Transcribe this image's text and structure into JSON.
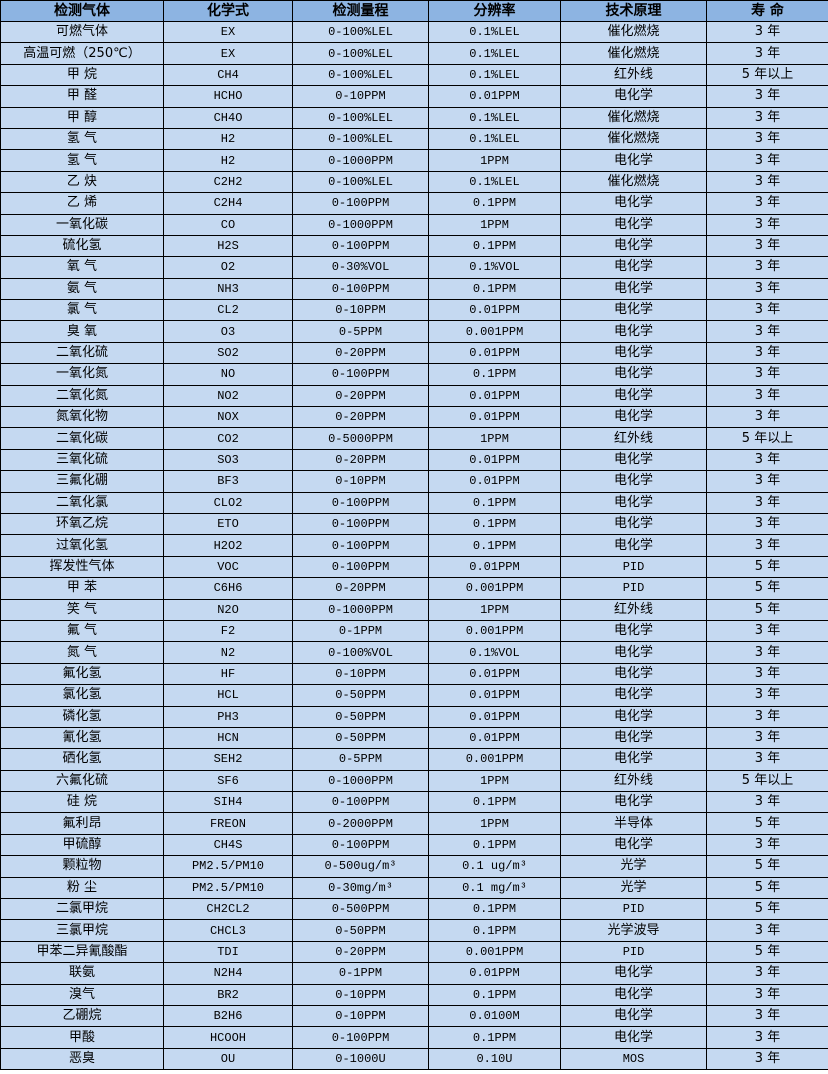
{
  "colors": {
    "header_bg": "#8db4e2",
    "row_bg": "#c5d9f1",
    "border": "#000000"
  },
  "headers": [
    "检测气体",
    "化学式",
    "检测量程",
    "分辨率",
    "技术原理",
    "寿 命"
  ],
  "rows": [
    [
      "可燃气体",
      "EX",
      "0-100%LEL",
      "0.1%LEL",
      "催化燃烧",
      "3 年"
    ],
    [
      "高温可燃（250℃）",
      "EX",
      "0-100%LEL",
      "0.1%LEL",
      "催化燃烧",
      "3 年"
    ],
    [
      "甲 烷",
      "CH4",
      "0-100%LEL",
      "0.1%LEL",
      "红外线",
      "5 年以上"
    ],
    [
      "甲 醛",
      "HCHO",
      "0-10PPM",
      "0.01PPM",
      "电化学",
      "3 年"
    ],
    [
      "甲 醇",
      "CH4O",
      "0-100%LEL",
      "0.1%LEL",
      "催化燃烧",
      "3 年"
    ],
    [
      "氢 气",
      "H2",
      "0-100%LEL",
      "0.1%LEL",
      "催化燃烧",
      "3 年"
    ],
    [
      "氢 气",
      "H2",
      "0-1000PPM",
      "1PPM",
      "电化学",
      "3 年"
    ],
    [
      "乙 炔",
      "C2H2",
      "0-100%LEL",
      "0.1%LEL",
      "催化燃烧",
      "3 年"
    ],
    [
      "乙 烯",
      "C2H4",
      "0-100PPM",
      "0.1PPM",
      "电化学",
      "3 年"
    ],
    [
      "一氧化碳",
      "CO",
      "0-1000PPM",
      "1PPM",
      "电化学",
      "3 年"
    ],
    [
      "硫化氢",
      "H2S",
      "0-100PPM",
      "0.1PPM",
      "电化学",
      "3 年"
    ],
    [
      "氧 气",
      "O2",
      "0-30%VOL",
      "0.1%VOL",
      "电化学",
      "3 年"
    ],
    [
      "氨 气",
      "NH3",
      "0-100PPM",
      "0.1PPM",
      "电化学",
      "3 年"
    ],
    [
      "氯 气",
      "CL2",
      "0-10PPM",
      "0.01PPM",
      "电化学",
      "3 年"
    ],
    [
      "臭 氧",
      "O3",
      "0-5PPM",
      "0.001PPM",
      "电化学",
      "3 年"
    ],
    [
      "二氧化硫",
      "SO2",
      "0-20PPM",
      "0.01PPM",
      "电化学",
      "3 年"
    ],
    [
      "一氧化氮",
      "NO",
      "0-100PPM",
      "0.1PPM",
      "电化学",
      "3 年"
    ],
    [
      "二氧化氮",
      "NO2",
      "0-20PPM",
      "0.01PPM",
      "电化学",
      "3 年"
    ],
    [
      "氮氧化物",
      "NOX",
      "0-20PPM",
      "0.01PPM",
      "电化学",
      "3 年"
    ],
    [
      "二氧化碳",
      "CO2",
      "0-5000PPM",
      "1PPM",
      "红外线",
      "5 年以上"
    ],
    [
      "三氧化硫",
      "SO3",
      "0-20PPM",
      "0.01PPM",
      "电化学",
      "3 年"
    ],
    [
      "三氟化硼",
      "BF3",
      "0-10PPM",
      "0.01PPM",
      "电化学",
      "3 年"
    ],
    [
      "二氧化氯",
      "CLO2",
      "0-100PPM",
      "0.1PPM",
      "电化学",
      "3 年"
    ],
    [
      "环氧乙烷",
      "ETO",
      "0-100PPM",
      "0.1PPM",
      "电化学",
      "3 年"
    ],
    [
      "过氧化氢",
      "H2O2",
      "0-100PPM",
      "0.1PPM",
      "电化学",
      "3 年"
    ],
    [
      "挥发性气体",
      "VOC",
      "0-100PPM",
      "0.01PPM",
      "PID",
      "5 年"
    ],
    [
      "甲 苯",
      "C6H6",
      "0-20PPM",
      "0.001PPM",
      "PID",
      "5 年"
    ],
    [
      "笑 气",
      "N2O",
      "0-1000PPM",
      "1PPM",
      "红外线",
      "5 年"
    ],
    [
      "氟 气",
      "F2",
      "0-1PPM",
      "0.001PPM",
      "电化学",
      "3 年"
    ],
    [
      "氮 气",
      "N2",
      "0-100%VOL",
      "0.1%VOL",
      "电化学",
      "3 年"
    ],
    [
      "氟化氢",
      "HF",
      "0-10PPM",
      "0.01PPM",
      "电化学",
      "3 年"
    ],
    [
      "氯化氢",
      "HCL",
      "0-50PPM",
      "0.01PPM",
      "电化学",
      "3 年"
    ],
    [
      "磷化氢",
      "PH3",
      "0-50PPM",
      "0.01PPM",
      "电化学",
      "3 年"
    ],
    [
      "氰化氢",
      "HCN",
      "0-50PPM",
      "0.01PPM",
      "电化学",
      "3 年"
    ],
    [
      "硒化氢",
      "SEH2",
      "0-5PPM",
      "0.001PPM",
      "电化学",
      "3 年"
    ],
    [
      "六氟化硫",
      "SF6",
      "0-1000PPM",
      "1PPM",
      "红外线",
      "5 年以上"
    ],
    [
      "硅 烷",
      "SIH4",
      "0-100PPM",
      "0.1PPM",
      "电化学",
      "3 年"
    ],
    [
      "氟利昂",
      "FREON",
      "0-2000PPM",
      "1PPM",
      "半导体",
      "5 年"
    ],
    [
      "甲硫醇",
      "CH4S",
      "0-100PPM",
      "0.1PPM",
      "电化学",
      "3 年"
    ],
    [
      "颗粒物",
      "PM2.5/PM10",
      "0-500ug/m³",
      "0.1 ug/m³",
      "光学",
      "5 年"
    ],
    [
      "粉 尘",
      "PM2.5/PM10",
      "0-30mg/m³",
      "0.1 mg/m³",
      "光学",
      "5 年"
    ],
    [
      "二氯甲烷",
      "CH2CL2",
      "0-500PPM",
      "0.1PPM",
      "PID",
      "5 年"
    ],
    [
      "三氯甲烷",
      "CHCL3",
      "0-50PPM",
      "0.1PPM",
      "光学波导",
      "3 年"
    ],
    [
      "甲苯二异氰酸酯",
      "TDI",
      "0-20PPM",
      "0.001PPM",
      "PID",
      "5 年"
    ],
    [
      "联氨",
      "N2H4",
      "0-1PPM",
      "0.01PPM",
      "电化学",
      "3 年"
    ],
    [
      "溴气",
      "BR2",
      "0-10PPM",
      "0.1PPM",
      "电化学",
      "3 年"
    ],
    [
      "乙硼烷",
      "B2H6",
      "0-10PPM",
      "0.0100M",
      "电化学",
      "3 年"
    ],
    [
      "甲酸",
      "HCOOH",
      "0-100PPM",
      "0.1PPM",
      "电化学",
      "3 年"
    ],
    [
      "恶臭",
      "OU",
      "0-1000U",
      "0.10U",
      "MOS",
      "3 年"
    ]
  ]
}
